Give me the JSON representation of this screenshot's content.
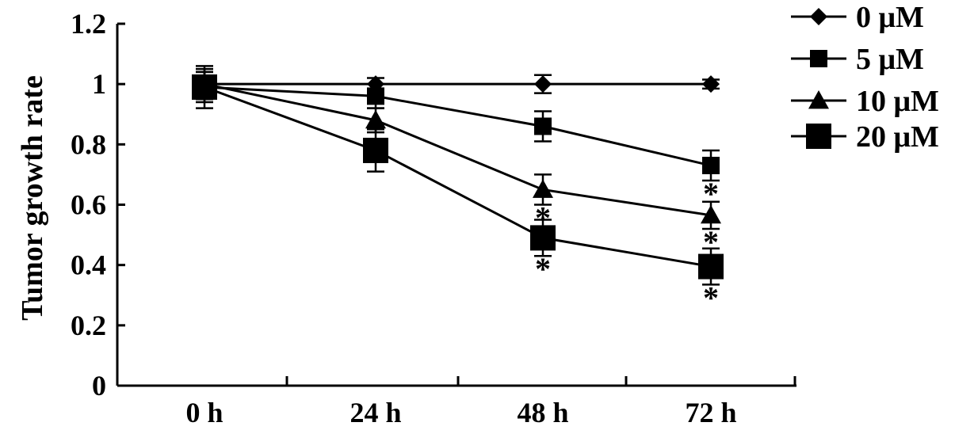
{
  "chart_data": {
    "type": "line",
    "title": "",
    "xlabel": "",
    "ylabel": "Tumor growth rate",
    "categories": [
      "0 h",
      "24 h",
      "48 h",
      "72 h"
    ],
    "ylim": [
      0,
      1.2
    ],
    "yticks": [
      "0",
      "0.2",
      "0.4",
      "0.6",
      "0.8",
      "1",
      "1.2"
    ],
    "ytick_values": [
      0,
      0.2,
      0.4,
      0.6,
      0.8,
      1.0,
      1.2
    ],
    "grid": false,
    "legend_position": "top-right",
    "series": [
      {
        "name": "0 μM",
        "marker": "diamond",
        "values": [
          1.0,
          1.0,
          1.0,
          1.0
        ],
        "errors": [
          0.04,
          0.02,
          0.03,
          0.015
        ],
        "significant": [
          false,
          false,
          false,
          false
        ]
      },
      {
        "name": "5 μM",
        "marker": "square",
        "values": [
          0.99,
          0.96,
          0.86,
          0.73
        ],
        "errors": [
          0.05,
          0.04,
          0.05,
          0.05
        ],
        "significant": [
          false,
          false,
          false,
          true
        ]
      },
      {
        "name": "10 μM",
        "marker": "triangle",
        "values": [
          1.0,
          0.88,
          0.65,
          0.565
        ],
        "errors": [
          0.05,
          0.04,
          0.05,
          0.045
        ],
        "significant": [
          false,
          false,
          true,
          true
        ]
      },
      {
        "name": "20 μM",
        "marker": "big-square",
        "values": [
          0.99,
          0.78,
          0.49,
          0.395
        ],
        "errors": [
          0.07,
          0.07,
          0.06,
          0.06
        ],
        "significant": [
          false,
          false,
          true,
          true
        ]
      }
    ],
    "significance_marker": "*"
  }
}
